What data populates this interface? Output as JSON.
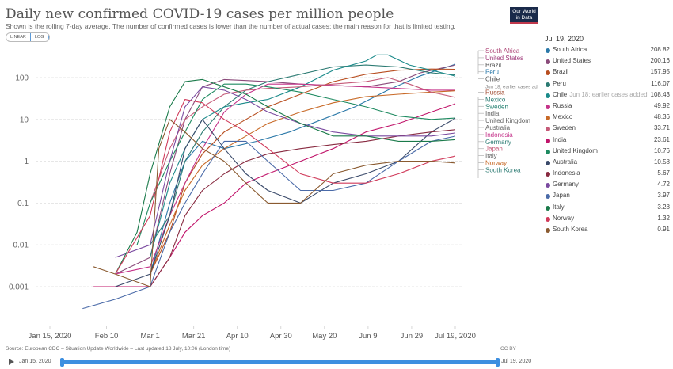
{
  "header": {
    "title": "Daily new confirmed COVID-19 cases per million people",
    "subtitle": "Shown is the rolling 7-day average. The number of confirmed cases is lower than the number of actual cases; the main reason for that is limited testing.",
    "scale_options": [
      "LINEAR",
      "LOG"
    ],
    "selected_scale": "LOG",
    "logo_line1": "Our World",
    "logo_line2": "in Data"
  },
  "legend": {
    "date": "Jul 19, 2020",
    "items": [
      {
        "name": "South Africa",
        "value": "208.82",
        "color": "#2a78a8",
        "note": ""
      },
      {
        "name": "United States",
        "value": "200.16",
        "color": "#8a4a7a",
        "note": ""
      },
      {
        "name": "Brazil",
        "value": "157.95",
        "color": "#b84e20",
        "note": ""
      },
      {
        "name": "Peru",
        "value": "116.07",
        "color": "#2b7a72",
        "note": ""
      },
      {
        "name": "Chile",
        "value": "108.43",
        "color": "#1a8a8a",
        "note": "Jun 18: earlier cases added"
      },
      {
        "name": "Russia",
        "value": "49.92",
        "color": "#c5348a",
        "note": ""
      },
      {
        "name": "Mexico",
        "value": "48.36",
        "color": "#c86a28",
        "note": ""
      },
      {
        "name": "Sweden",
        "value": "33.71",
        "color": "#c55a78",
        "note": ""
      },
      {
        "name": "India",
        "value": "23.61",
        "color": "#c0146a",
        "note": ""
      },
      {
        "name": "United Kingdom",
        "value": "10.76",
        "color": "#1e8a60",
        "note": ""
      },
      {
        "name": "Australia",
        "value": "10.58",
        "color": "#3a4a6a",
        "note": ""
      },
      {
        "name": "Indonesia",
        "value": "5.67",
        "color": "#882a40",
        "note": ""
      },
      {
        "name": "Germany",
        "value": "4.72",
        "color": "#7a4aa0",
        "note": ""
      },
      {
        "name": "Japan",
        "value": "3.97",
        "color": "#4a6aa8",
        "note": ""
      },
      {
        "name": "Italy",
        "value": "3.28",
        "color": "#1a7a4a",
        "note": ""
      },
      {
        "name": "Norway",
        "value": "1.32",
        "color": "#d03a5a",
        "note": ""
      },
      {
        "name": "South Korea",
        "value": "0.91",
        "color": "#8a5a30",
        "note": ""
      }
    ]
  },
  "footer": {
    "source": "Source: European CDC – Situation Update Worldwide – Last updated 18 July, 10:06 (London time)",
    "license": "CC BY",
    "timeline_start": "Jan 15, 2020",
    "timeline_end": "Jul 19, 2020"
  },
  "chart_data": {
    "type": "line",
    "title": "Daily new confirmed COVID-19 cases per million people",
    "xlabel": "",
    "ylabel": "",
    "yscale": "log",
    "ylim": [
      0.0002,
      400
    ],
    "y_ticks": [
      0.001,
      0.01,
      0.1,
      1,
      10,
      100
    ],
    "y_tick_labels": [
      "0.001",
      "0.01",
      "0.1",
      "1",
      "10",
      "100"
    ],
    "x_ticks": [
      "Jan 15, 2020",
      "Feb 10",
      "Mar 1",
      "Mar 21",
      "Apr 10",
      "Apr 30",
      "May 20",
      "Jun 9",
      "Jun 29",
      "Jul 19, 2020"
    ],
    "x_tick_days": [
      0,
      26,
      46,
      66,
      86,
      106,
      126,
      146,
      166,
      186
    ],
    "grid": true,
    "legend_placement": "right",
    "line_labels": [
      "South Africa",
      "United States",
      "Brazil",
      "Peru",
      "Chile",
      "Jun 18: earlier cases added",
      "Russia",
      "Mexico",
      "Sweden",
      "India",
      "United Kingdom",
      "Australia",
      "Indonesia",
      "Germany",
      "Japan",
      "Italy",
      "Norway",
      "South Korea"
    ],
    "series": [
      {
        "name": "South Africa",
        "x": [
          46,
          55,
          62,
          70,
          80,
          95,
          110,
          125,
          140,
          155,
          170,
          186
        ],
        "values": [
          0.002,
          0.1,
          1,
          3,
          2,
          3,
          5,
          10,
          20,
          50,
          110,
          208.82
        ]
      },
      {
        "name": "United States",
        "x": [
          30,
          46,
          55,
          62,
          70,
          80,
          90,
          100,
          115,
          130,
          145,
          160,
          170,
          186
        ],
        "values": [
          0.002,
          0.005,
          0.5,
          10,
          60,
          90,
          85,
          80,
          70,
          65,
          60,
          80,
          130,
          200.16
        ]
      },
      {
        "name": "Brazil",
        "x": [
          46,
          55,
          62,
          70,
          80,
          90,
          100,
          115,
          130,
          145,
          160,
          175,
          186
        ],
        "values": [
          0.002,
          0.02,
          0.3,
          1.5,
          5,
          10,
          20,
          40,
          80,
          120,
          150,
          160,
          157.95
        ]
      },
      {
        "name": "Peru",
        "x": [
          46,
          55,
          62,
          70,
          80,
          90,
          100,
          115,
          130,
          145,
          160,
          175,
          186
        ],
        "values": [
          0.01,
          0.05,
          1,
          5,
          20,
          50,
          80,
          120,
          180,
          200,
          180,
          130,
          116.07
        ]
      },
      {
        "name": "Chile",
        "x": [
          46,
          55,
          62,
          70,
          80,
          90,
          100,
          115,
          130,
          145,
          150,
          155,
          165,
          175,
          186
        ],
        "values": [
          0.005,
          0.3,
          2,
          10,
          20,
          25,
          30,
          60,
          150,
          250,
          350,
          350,
          200,
          150,
          108.43
        ]
      },
      {
        "name": "Russia",
        "x": [
          30,
          46,
          55,
          62,
          70,
          80,
          90,
          100,
          115,
          130,
          145,
          160,
          175,
          186
        ],
        "values": [
          0.002,
          0.003,
          0.05,
          0.3,
          2,
          15,
          40,
          70,
          70,
          65,
          60,
          55,
          50,
          49.92
        ]
      },
      {
        "name": "Mexico",
        "x": [
          46,
          55,
          62,
          70,
          80,
          90,
          100,
          115,
          130,
          145,
          160,
          175,
          186
        ],
        "values": [
          0.002,
          0.03,
          0.2,
          0.8,
          2,
          4,
          8,
          15,
          25,
          35,
          40,
          45,
          48.36
        ]
      },
      {
        "name": "Sweden",
        "x": [
          46,
          55,
          62,
          70,
          80,
          90,
          100,
          115,
          130,
          145,
          155,
          165,
          175,
          186
        ],
        "values": [
          0.1,
          2,
          10,
          20,
          40,
          50,
          55,
          60,
          70,
          80,
          100,
          70,
          45,
          33.71
        ]
      },
      {
        "name": "India",
        "x": [
          20,
          30,
          46,
          55,
          62,
          70,
          80,
          90,
          100,
          115,
          130,
          145,
          160,
          175,
          186
        ],
        "values": [
          0.001,
          0.001,
          0.001,
          0.005,
          0.02,
          0.05,
          0.1,
          0.3,
          0.5,
          1,
          2,
          5,
          8,
          15,
          23.61
        ]
      },
      {
        "name": "United Kingdom",
        "x": [
          40,
          46,
          55,
          62,
          70,
          80,
          90,
          100,
          115,
          130,
          145,
          160,
          175,
          186
        ],
        "values": [
          0.01,
          0.1,
          1,
          5,
          30,
          70,
          70,
          60,
          45,
          30,
          20,
          12,
          10,
          10.76
        ]
      },
      {
        "name": "Australia",
        "x": [
          30,
          46,
          55,
          62,
          70,
          80,
          90,
          100,
          115,
          130,
          145,
          160,
          175,
          186
        ],
        "values": [
          0.001,
          0.002,
          0.05,
          2,
          10,
          2,
          0.5,
          0.2,
          0.1,
          0.3,
          0.5,
          1,
          5,
          10.58
        ]
      },
      {
        "name": "Indonesia",
        "x": [
          46,
          55,
          62,
          70,
          80,
          90,
          100,
          115,
          130,
          145,
          160,
          175,
          186
        ],
        "values": [
          0.001,
          0.005,
          0.05,
          0.2,
          0.5,
          1,
          1.5,
          2,
          2.5,
          3,
          4,
          5,
          5.67
        ]
      },
      {
        "name": "Germany",
        "x": [
          30,
          46,
          55,
          62,
          70,
          80,
          90,
          100,
          115,
          130,
          145,
          160,
          175,
          186
        ],
        "values": [
          0.005,
          0.01,
          1,
          20,
          60,
          50,
          30,
          15,
          8,
          5,
          4,
          4,
          4,
          4.72
        ]
      },
      {
        "name": "Japan",
        "x": [
          15,
          30,
          46,
          55,
          62,
          70,
          80,
          90,
          100,
          115,
          130,
          145,
          160,
          175,
          186
        ],
        "values": [
          0.0003,
          0.0005,
          0.001,
          0.02,
          0.1,
          0.5,
          3,
          3,
          1,
          0.2,
          0.2,
          0.3,
          1,
          3,
          3.97
        ]
      },
      {
        "name": "Italy",
        "x": [
          30,
          40,
          46,
          55,
          62,
          70,
          80,
          90,
          100,
          115,
          130,
          145,
          160,
          175,
          186
        ],
        "values": [
          0.002,
          0.02,
          0.5,
          20,
          80,
          90,
          60,
          40,
          20,
          8,
          4,
          4,
          3,
          3,
          3.28
        ]
      },
      {
        "name": "Norway",
        "x": [
          30,
          46,
          55,
          62,
          70,
          80,
          90,
          100,
          115,
          130,
          145,
          160,
          175,
          186
        ],
        "values": [
          0.002,
          0.05,
          5,
          30,
          25,
          10,
          5,
          2,
          0.5,
          0.3,
          0.3,
          0.5,
          1,
          1.32
        ]
      },
      {
        "name": "South Korea",
        "x": [
          20,
          30,
          46,
          50,
          55,
          62,
          70,
          80,
          90,
          100,
          115,
          130,
          145,
          160,
          175,
          186
        ],
        "values": [
          0.003,
          0.002,
          0.001,
          2,
          10,
          5,
          2,
          1,
          0.3,
          0.1,
          0.1,
          0.5,
          0.8,
          1,
          1,
          0.91
        ]
      }
    ]
  }
}
